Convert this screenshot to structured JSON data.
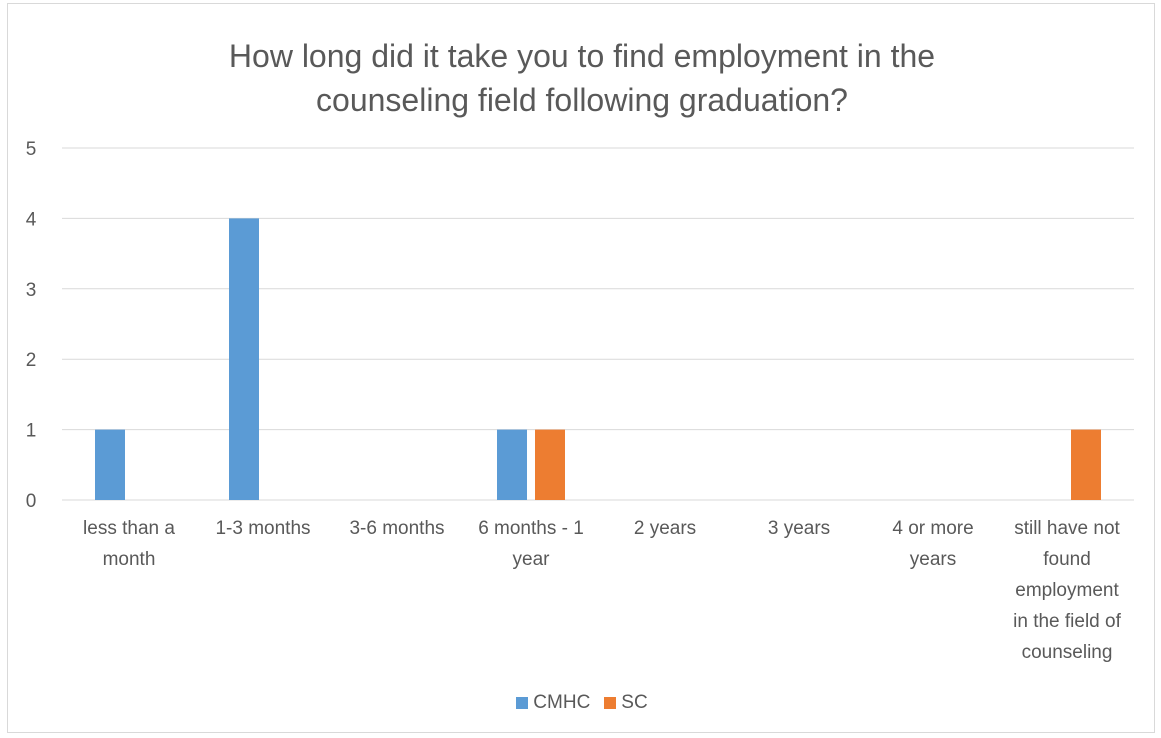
{
  "chart_data": {
    "type": "bar",
    "title_lines": [
      "How long did it take you to find employment in the",
      "counseling field following graduation?"
    ],
    "categories": [
      [
        "less than a",
        "month"
      ],
      [
        "1-3 months"
      ],
      [
        "3-6 months"
      ],
      [
        "6 months - 1",
        "year"
      ],
      [
        "2 years"
      ],
      [
        "3 years"
      ],
      [
        "4 or more",
        "years"
      ],
      [
        "still have not",
        "found",
        "employment",
        "in the field of",
        "counseling"
      ]
    ],
    "series": [
      {
        "name": "CMHC",
        "color": "#5b9bd5",
        "values": [
          1,
          4,
          0,
          1,
          0,
          0,
          0,
          0
        ]
      },
      {
        "name": "SC",
        "color": "#ed7d31",
        "values": [
          0,
          0,
          0,
          1,
          0,
          0,
          0,
          1
        ]
      }
    ],
    "ylim": [
      0,
      5
    ],
    "yticks": [
      "0",
      "1",
      "2",
      "3",
      "4",
      "5"
    ],
    "grid": true,
    "legend_position": "bottom"
  }
}
